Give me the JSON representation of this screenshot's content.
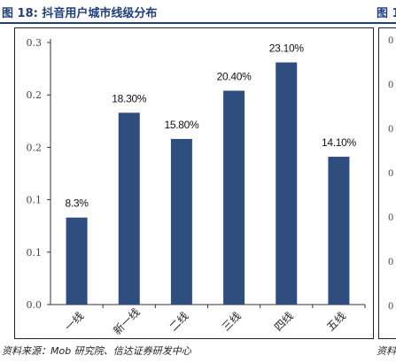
{
  "figure": {
    "title": "图 18:  抖音用户城市线级分布",
    "next_title": "图 1",
    "source": "资料来源：Mob 研究院、信达证券研发中心",
    "next_source": "资料",
    "next_ticks": [
      "0",
      "0",
      "0",
      "0",
      "0",
      "0",
      "0"
    ]
  },
  "colors": {
    "bar": "#2f4d7e",
    "title": "#1f3f77",
    "axis": "#333333",
    "frame": "#222222"
  },
  "chart_data": {
    "type": "bar",
    "title": "",
    "xlabel": "",
    "ylabel": "",
    "categories": [
      "一线",
      "新一线",
      "二线",
      "三线",
      "四线",
      "五线"
    ],
    "values": [
      0.083,
      0.183,
      0.158,
      0.204,
      0.231,
      0.141
    ],
    "data_labels": [
      "8.3%",
      "18.30%",
      "15.80%",
      "20.40%",
      "23.10%",
      "14.10%"
    ],
    "yticks": [
      "0.0",
      "0.1",
      "0.1",
      "0.2",
      "0.2",
      "0.3"
    ],
    "ytick_values": [
      0,
      0.05,
      0.1,
      0.15,
      0.2,
      0.25
    ],
    "ylim": [
      0,
      0.25
    ],
    "grid": false,
    "legend": "none"
  }
}
